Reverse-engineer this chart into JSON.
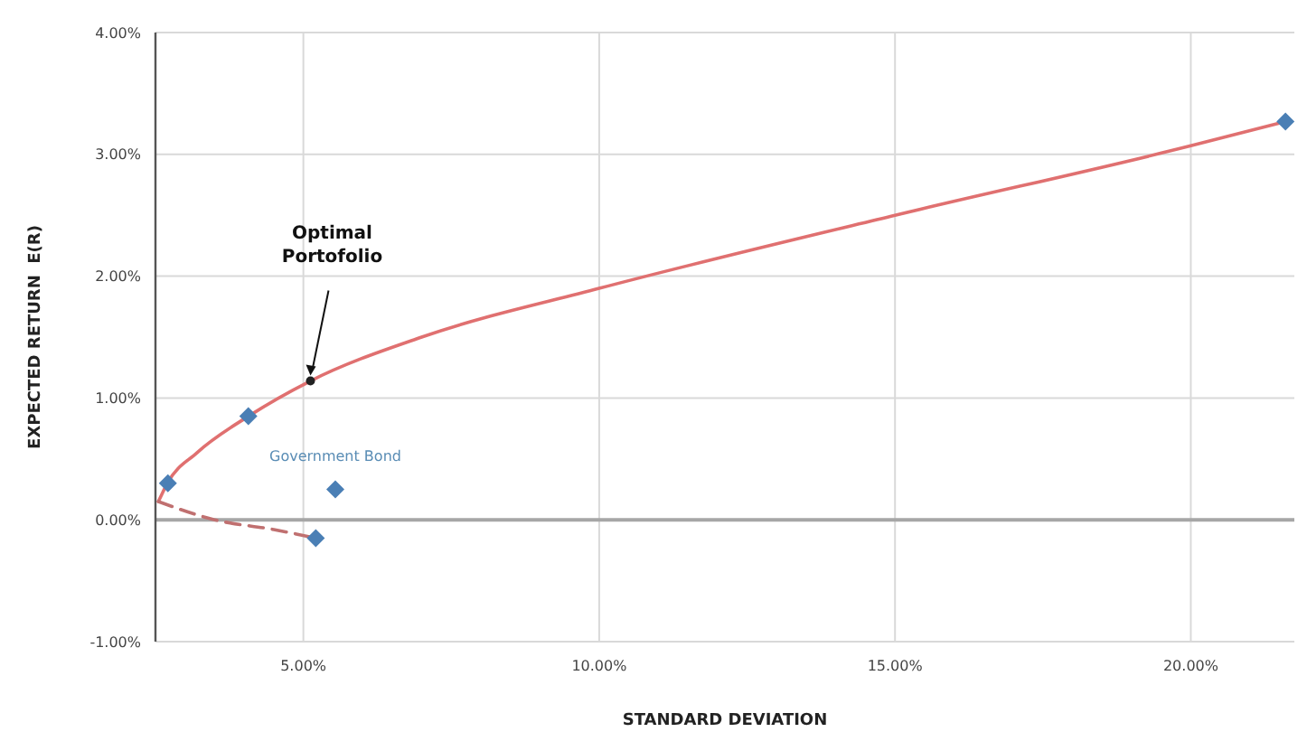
{
  "chart_data": {
    "type": "line",
    "xlabel": "STANDARD DEVIATION",
    "ylabel": "EXPECTED RETURN  E(R)",
    "xlim": [
      2.5,
      21.75
    ],
    "ylim": [
      -1,
      4
    ],
    "xticks": [
      {
        "value": 5,
        "label": "5.00%"
      },
      {
        "value": 10,
        "label": "10.00%"
      },
      {
        "value": 15,
        "label": "15.00%"
      },
      {
        "value": 20,
        "label": "20.00%"
      }
    ],
    "yticks": [
      {
        "value": -1,
        "label": "-1.00%"
      },
      {
        "value": 0,
        "label": "0.00%"
      },
      {
        "value": 1,
        "label": "1.00%"
      },
      {
        "value": 2,
        "label": "2.00%"
      },
      {
        "value": 3,
        "label": "3.00%"
      },
      {
        "value": 4,
        "label": "4.00%"
      }
    ],
    "grid": true,
    "ref_lines": [
      {
        "axis": "y",
        "value": 0,
        "color": "#a6a6a6"
      }
    ],
    "series": [
      {
        "color": "#e07070",
        "line_style": "solid",
        "marker": "none",
        "x": [
          2.55,
          2.7,
          3.2,
          4.07,
          5.12,
          7,
          10,
          15,
          20,
          21.6
        ],
        "values": [
          0.15,
          0.3,
          0.55,
          0.85,
          1.14,
          1.5,
          1.9,
          2.5,
          3.07,
          3.27
        ]
      },
      {
        "color": "#c07070",
        "line_style": "dashed",
        "marker": "none",
        "x": [
          2.55,
          3.5,
          4.5,
          5.21
        ],
        "values": [
          0.15,
          0.0,
          -0.08,
          -0.15
        ]
      },
      {
        "type": "scatter",
        "color": "#4a7fb5",
        "marker": "diamond",
        "x": [
          2.71,
          4.07,
          5.54,
          5.21,
          21.6
        ],
        "values": [
          0.3,
          0.85,
          0.25,
          -0.15,
          3.27
        ]
      },
      {
        "type": "scatter",
        "color": "#222222",
        "marker": "circle",
        "x": [
          5.12
        ],
        "values": [
          1.14
        ]
      }
    ],
    "annotations": [
      {
        "text": "Optimal Portofolio",
        "x": 5.12,
        "y": 1.14
      },
      {
        "text": "Government Bond",
        "x": 5.54,
        "y": 0.25
      }
    ]
  }
}
